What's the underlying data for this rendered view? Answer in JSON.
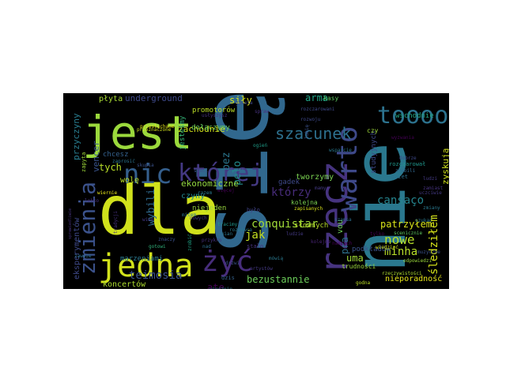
{
  "wordcloud": {
    "words": [
      {
        "text": "się",
        "color": "#31688e"
      },
      {
        "text": "dla",
        "color": "#d0e11c"
      },
      {
        "text": "jest",
        "color": "#9bd93c"
      },
      {
        "text": "nie",
        "color": "#2a788e"
      },
      {
        "text": "rzecz",
        "color": "#46337f"
      },
      {
        "text": "jedna",
        "color": "#d2e21b"
      },
      {
        "text": "żyć",
        "color": "#472d7b"
      },
      {
        "text": "warto",
        "color": "#3e4989"
      },
      {
        "text": "toooo",
        "color": "#2c728e"
      },
      {
        "text": "nic",
        "color": "#355f8d"
      },
      {
        "text": "której",
        "color": "#443983"
      },
      {
        "text": "zmienia",
        "color": "#3b528b"
      },
      {
        "text": "szacunek",
        "color": "#2d708e"
      },
      {
        "text": "nowe",
        "color": "#b5de2b"
      },
      {
        "text": "conquistar",
        "color": "#a0da39"
      },
      {
        "text": "patrzyłem",
        "color": "#d8e219"
      },
      {
        "text": "minha",
        "color": "#b8de29"
      },
      {
        "text": "cansaço",
        "color": "#25848e"
      },
      {
        "text": "uma",
        "color": "#a2da37"
      },
      {
        "text": "pra",
        "color": "#2d708e"
      },
      {
        "text": "którzy",
        "color": "#472c7a"
      },
      {
        "text": "jak",
        "color": "#c5e021"
      },
      {
        "text": "teimosia",
        "color": "#3b528b"
      },
      {
        "text": "bezustannie",
        "color": "#6ccd5a"
      },
      {
        "text": "śledziłem",
        "color": "#d5e21a"
      },
      {
        "text": "siły",
        "color": "#d8e219"
      },
      {
        "text": "arma",
        "color": "#20a386"
      },
      {
        "text": "pelo",
        "color": "#228c8d"
      },
      {
        "text": "bez",
        "color": "#2a768e"
      },
      {
        "text": "wybili",
        "color": "#306a8e"
      },
      {
        "text": "ekonomiczne",
        "color": "#93d741"
      },
      {
        "text": "tych",
        "color": "#b8de29"
      },
      {
        "text": "underground",
        "color": "#3e4989"
      },
      {
        "text": "płyta",
        "color": "#a8db34"
      },
      {
        "text": "zachodnie",
        "color": "#d2e21b"
      },
      {
        "text": "tworzymy",
        "color": "#7ad151"
      },
      {
        "text": "przyczyny",
        "color": "#287c8e"
      },
      {
        "text": "vencer",
        "color": "#3a548c"
      },
      {
        "text": "koncertów",
        "color": "#addc30"
      },
      {
        "text": "eksperymentów",
        "color": "#3e4989"
      },
      {
        "text": "nieporadność",
        "color": "#e5e419"
      },
      {
        "text": "zyskują",
        "color": "#d0e11c"
      },
      {
        "text": "promotorów",
        "color": "#bddf26"
      },
      {
        "text": "dołączymy",
        "color": "#65cb5e"
      },
      {
        "text": "czyny",
        "color": "#23898e"
      },
      {
        "text": "wolę",
        "color": "#bddf26"
      },
      {
        "text": "chcesz",
        "color": "#34618d"
      },
      {
        "text": "jesteśmy",
        "color": "#35b779"
      },
      {
        "text": "wschodnie",
        "color": "#22a785"
      },
      {
        "text": "marzeniami",
        "color": "#2a788e"
      },
      {
        "text": "podkładów",
        "color": "#3b528b"
      },
      {
        "text": "słownych",
        "color": "#b8de29"
      },
      {
        "text": "kolejna",
        "color": "#7ad151"
      },
      {
        "text": "gadek",
        "color": "#3e4989"
      },
      {
        "text": "trudności",
        "color": "#9bd93c"
      },
      {
        "text": "studyjnych",
        "color": "#3e4989"
      },
      {
        "text": "vou",
        "color": "#6ece58"
      },
      {
        "text": "niejeden",
        "color": "#98d83e"
      },
      {
        "text": "ate",
        "color": "#440154"
      },
      {
        "text": "czy",
        "color": "#9fda3a"
      },
      {
        "text": "kasy",
        "color": "#5ec962"
      },
      {
        "text": "zapisanych",
        "color": "#d8e219"
      },
      {
        "text": "przeznaczone",
        "color": "#d0e11c"
      },
      {
        "text": "zapyta",
        "color": "#9fda3a"
      },
      {
        "text": "ogień",
        "color": "#1f9e89"
      },
      {
        "text": "zaprosić",
        "color": "#2b748e"
      },
      {
        "text": "przesłuchane",
        "color": "#e7e419"
      },
      {
        "text": "usłyszysz",
        "color": "#46327e"
      },
      {
        "text": "wiernie",
        "color": "#e5e419"
      },
      {
        "text": "skupia",
        "color": "#3b528b"
      },
      {
        "text": "rozczarowani",
        "color": "#3e4989"
      },
      {
        "text": "tracimy",
        "color": "#1f968b"
      },
      {
        "text": "kolejne",
        "color": "#482475"
      },
      {
        "text": "wyzwania",
        "color": "#440154"
      },
      {
        "text": "gazet",
        "color": "#2c728e"
      },
      {
        "text": "lubię",
        "color": "#3b528b"
      },
      {
        "text": "rozczarował",
        "color": "#1f968b"
      },
      {
        "text": "odpowiedzi",
        "color": "#9bd93c"
      },
      {
        "text": "szukać",
        "color": "#2a788e"
      },
      {
        "text": "stało",
        "color": "#46327e"
      },
      {
        "text": "sieci",
        "color": "#3b528b"
      },
      {
        "text": "było",
        "color": "#414487"
      },
      {
        "text": "wiecznie",
        "color": "#2c728e"
      },
      {
        "text": "gotowi",
        "color": "#30b07a"
      },
      {
        "text": "razem",
        "color": "#2a788e"
      },
      {
        "text": "zrobić",
        "color": "#20a386"
      },
      {
        "text": "mamy",
        "color": "#443a83"
      },
      {
        "text": "naszych",
        "color": "#440154"
      },
      {
        "text": "zmian",
        "color": "#2b748e"
      },
      {
        "text": "wiedzieć",
        "color": "#d2e21b"
      },
      {
        "text": "gaseta",
        "color": "#3e4989"
      },
      {
        "text": "mitem",
        "color": "#2c728e"
      },
      {
        "text": "znaczy",
        "color": "#3b528b"
      },
      {
        "text": "wiem",
        "color": "#443983"
      },
      {
        "text": "godna",
        "color": "#bddf26"
      },
      {
        "text": "rozmówca",
        "color": "#2a788e"
      },
      {
        "text": "spraw",
        "color": "#46327e"
      },
      {
        "text": "rozwoju",
        "color": "#3e4989"
      },
      {
        "text": "nowych",
        "color": "#443983"
      },
      {
        "text": "szansa",
        "color": "#2d708e"
      },
      {
        "text": "więcej",
        "color": "#440154"
      },
      {
        "text": "wsparcie",
        "color": "#2a788e"
      },
      {
        "text": "dzis",
        "color": "#34618d"
      },
      {
        "text": "mówią",
        "color": "#2a788e"
      },
      {
        "text": "tylko",
        "color": "#440154"
      },
      {
        "text": "drzwi",
        "color": "#3b528b"
      },
      {
        "text": "artystów",
        "color": "#443983"
      },
      {
        "text": "nad",
        "color": "#2d708e"
      },
      {
        "text": "dobrze",
        "color": "#3e4989"
      },
      {
        "text": "zrobili",
        "color": "#31688e"
      },
      {
        "text": "przykro",
        "color": "#46327e"
      },
      {
        "text": "tradycji",
        "color": "#46327e"
      },
      {
        "text": "sprawiedliwie",
        "color": "#46327e"
      },
      {
        "text": "uczciwie",
        "color": "#443983"
      },
      {
        "text": "rzeczywistości",
        "color": "#addc30"
      },
      {
        "text": "zmiany",
        "color": "#2a788e"
      },
      {
        "text": "lekko",
        "color": "#46327e"
      },
      {
        "text": "zawsze",
        "color": "#2c728e"
      },
      {
        "text": "ludzi",
        "color": "#443983"
      },
      {
        "text": "scenicznie",
        "color": "#5ec962"
      },
      {
        "text": "ludzie",
        "color": "#443983"
      },
      {
        "text": "muzyczne",
        "color": "#3b528b"
      },
      {
        "text": "zamiast",
        "color": "#46327e"
      }
    ]
  }
}
